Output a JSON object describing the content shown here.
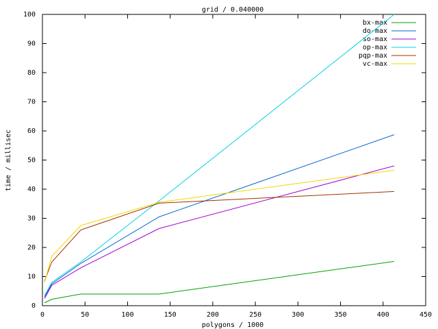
{
  "chart_data": {
    "type": "line",
    "title": "grid / 0.040000",
    "x_label": "polygons / 1000",
    "y_label": "time / millisec",
    "x": [
      2.5,
      11,
      45,
      137,
      413
    ],
    "series": [
      {
        "name": "bx-max",
        "color": "#00a000",
        "values": [
          1,
          2.2,
          4,
          4,
          15.2
        ]
      },
      {
        "name": "do-max",
        "color": "#0066cc",
        "values": [
          3,
          7.5,
          14.5,
          30.5,
          58.7
        ]
      },
      {
        "name": "so-max",
        "color": "#a000d0",
        "values": [
          2.5,
          7,
          13,
          26.5,
          48
        ]
      },
      {
        "name": "op-max",
        "color": "#00d0e0",
        "values": [
          3.5,
          8,
          15,
          36,
          100
        ]
      },
      {
        "name": "pqp-max",
        "color": "#a03000",
        "values": [
          8.5,
          15,
          26,
          35.2,
          39.2
        ]
      },
      {
        "name": "vc-max",
        "color": "#f0d800",
        "values": [
          8,
          17,
          27.5,
          35.5,
          46.5
        ]
      }
    ],
    "xlim": [
      0,
      450
    ],
    "xticks": [
      0,
      50,
      100,
      150,
      200,
      250,
      300,
      350,
      400,
      450
    ],
    "ylim": [
      0,
      100
    ],
    "yticks": [
      0,
      10,
      20,
      30,
      40,
      50,
      60,
      70,
      80,
      90,
      100
    ],
    "legend": "top-right"
  }
}
